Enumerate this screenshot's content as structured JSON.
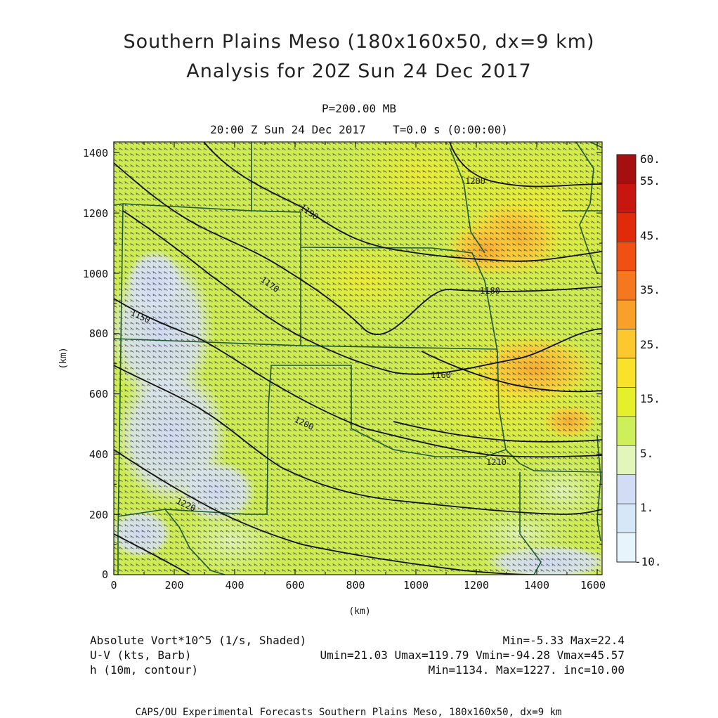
{
  "header": {
    "title_line1": "Southern Plains Meso (180x160x50, dx=9 km)",
    "title_line2": "Analysis for 20Z Sun 24 Dec 2017",
    "level": "P=200.00 MB",
    "valid_time": "20:00 Z Sun 24 Dec 2017    T=0.0 s (0:00:00)"
  },
  "axes": {
    "x_label": "(km)",
    "y_label": "(km)",
    "x_ticks": [
      "0",
      "200",
      "400",
      "600",
      "800",
      "1000",
      "1200",
      "1400",
      "1600"
    ],
    "y_ticks": [
      "0",
      "200",
      "400",
      "600",
      "800",
      "1000",
      "1200",
      "1400"
    ]
  },
  "colorbar": {
    "labels": [
      "60.",
      "55.",
      "45.",
      "35.",
      "25.",
      "15.",
      "5.",
      "1.",
      "-10."
    ],
    "colors": [
      "#a50f0f",
      "#c8150f",
      "#e12a0a",
      "#f05012",
      "#f5781e",
      "#f8a02a",
      "#fcc82e",
      "#fae12a",
      "#e6f02a",
      "#ccef5a",
      "#e2f6bc",
      "#d2dcf5",
      "#d6e8f8",
      "#e6f4fc"
    ]
  },
  "contours": {
    "labels": [
      "1200",
      "1190",
      "1180",
      "1170",
      "1160",
      "1150",
      "1200",
      "1210",
      "1220",
      "1220"
    ]
  },
  "footer": {
    "field1": "Absolute Vort*10^5 (1/s, Shaded)",
    "field1_stats": "Min=-5.33 Max=22.4",
    "field2": "U-V (kts, Barb)",
    "field2_stats": "Umin=21.03 Umax=119.79 Vmin=-94.28 Vmax=45.57",
    "field3": "h (10m, contour)",
    "field3_stats": "Min=1134. Max=1227. inc=10.00",
    "credit": "CAPS/OU Experimental Forecasts  Southern Plains Meso, 180x160x50, dx=9 km"
  }
}
